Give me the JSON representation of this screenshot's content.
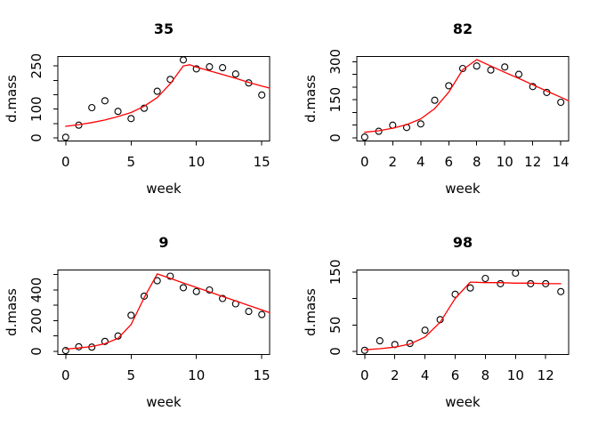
{
  "page": {
    "background": "#ffffff",
    "description": "2x2 grid of scatter plots with fitted curves"
  },
  "colors": {
    "axis": "#000000",
    "points": "#000000",
    "fit_line": "#ff0000",
    "text": "#000000",
    "plot_background": "#ffffff"
  },
  "chart_data": [
    {
      "id": "35",
      "type": "scatter",
      "title": "35",
      "xlabel": "week",
      "ylabel": "d.mass",
      "grid": false,
      "legend": null,
      "xlim": [
        -0.6,
        15.6
      ],
      "ylim": [
        -10.9,
        282.9
      ],
      "x_ticks": [
        0,
        5,
        10,
        15
      ],
      "y_ticks": [
        0,
        50,
        100,
        150,
        200,
        250
      ],
      "y_labeled_ticks": [
        0,
        100,
        250
      ],
      "points": {
        "x": [
          0,
          1,
          2,
          3,
          4,
          5,
          6,
          7,
          8,
          9,
          10,
          11,
          12,
          13,
          14,
          15
        ],
        "y": [
          2,
          44,
          105,
          129,
          92,
          67,
          103,
          162,
          203,
          271,
          240,
          247,
          244,
          222,
          191,
          149
        ]
      },
      "fit_line": {
        "x": [
          0,
          1,
          2,
          3,
          4,
          5,
          6,
          7,
          8,
          9,
          9.5,
          10,
          11,
          12,
          13,
          14,
          15,
          15.6
        ],
        "y": [
          40,
          46,
          53,
          62,
          74,
          88,
          110,
          140,
          188,
          250,
          254,
          246,
          233,
          220,
          207,
          193,
          180,
          173
        ]
      }
    },
    {
      "id": "82",
      "type": "scatter",
      "title": "82",
      "xlabel": "week",
      "ylabel": "d.mass",
      "grid": false,
      "legend": null,
      "xlim": [
        -0.56,
        14.56
      ],
      "ylim": [
        -12.3,
        320.3
      ],
      "x_ticks": [
        0,
        2,
        4,
        6,
        8,
        10,
        12,
        14
      ],
      "y_ticks": [
        0,
        50,
        100,
        150,
        200,
        250,
        300
      ],
      "y_labeled_ticks": [
        0,
        150,
        300
      ],
      "points": {
        "x": [
          0,
          1,
          2,
          3,
          4,
          5,
          6,
          7,
          8,
          9,
          10,
          11,
          12,
          13,
          14
        ],
        "y": [
          3,
          26,
          50,
          41,
          55,
          148,
          205,
          273,
          283,
          267,
          279,
          250,
          202,
          179,
          140
        ]
      },
      "fit_line": {
        "x": [
          0,
          1,
          2,
          3,
          4,
          5,
          6,
          7,
          8,
          9,
          10,
          11,
          12,
          13,
          14,
          14.56
        ],
        "y": [
          22,
          28,
          38,
          52,
          75,
          115,
          180,
          268,
          308,
          283,
          258,
          234,
          209,
          184,
          160,
          146
        ]
      }
    },
    {
      "id": "9",
      "type": "scatter",
      "title": "9",
      "xlabel": "week",
      "ylabel": "d.mass",
      "grid": false,
      "legend": null,
      "xlim": [
        -0.6,
        15.6
      ],
      "ylim": [
        -20.4,
        530.4
      ],
      "x_ticks": [
        0,
        5,
        10,
        15
      ],
      "y_ticks": [
        0,
        100,
        200,
        300,
        400,
        500
      ],
      "y_labeled_ticks": [
        0,
        200,
        400
      ],
      "points": {
        "x": [
          0,
          1,
          2,
          3,
          4,
          5,
          6,
          7,
          8,
          9,
          10,
          11,
          12,
          13,
          14,
          15
        ],
        "y": [
          5,
          30,
          28,
          65,
          100,
          235,
          360,
          460,
          490,
          415,
          390,
          400,
          345,
          310,
          260,
          240
        ]
      },
      "fit_line": {
        "x": [
          0,
          1,
          2,
          3,
          4,
          5,
          6,
          7,
          8,
          9,
          10,
          11,
          12,
          13,
          14,
          15,
          15.6
        ],
        "y": [
          15,
          22,
          32,
          50,
          85,
          175,
          350,
          505,
          476,
          446,
          417,
          388,
          358,
          329,
          299,
          270,
          252
        ]
      }
    },
    {
      "id": "98",
      "type": "scatter",
      "title": "98",
      "xlabel": "week",
      "ylabel": "d.mass",
      "grid": false,
      "legend": null,
      "xlim": [
        -0.52,
        13.52
      ],
      "ylim": [
        -5.9,
        153.9
      ],
      "x_ticks": [
        0,
        2,
        4,
        6,
        8,
        10,
        12
      ],
      "y_ticks": [
        0,
        50,
        100,
        150
      ],
      "y_labeled_ticks": [
        0,
        50,
        150
      ],
      "points": {
        "x": [
          0,
          1,
          2,
          3,
          4,
          5,
          6,
          7,
          8,
          9,
          10,
          11,
          12,
          13
        ],
        "y": [
          2,
          20,
          13,
          15,
          40,
          60,
          108,
          120,
          138,
          128,
          148,
          128,
          128,
          113
        ]
      },
      "fit_line": {
        "x": [
          0,
          1,
          2,
          3,
          4,
          5,
          6,
          7,
          8,
          9,
          10,
          11,
          12,
          13
        ],
        "y": [
          3,
          5,
          8,
          14,
          27,
          55,
          100,
          131,
          130,
          130,
          129,
          129,
          128,
          128
        ]
      }
    }
  ]
}
